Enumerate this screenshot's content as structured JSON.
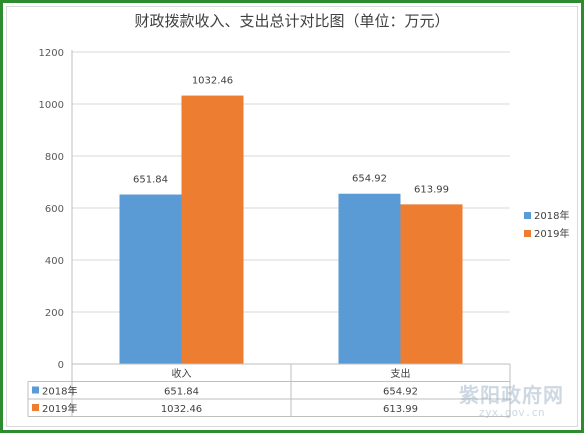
{
  "chart_data": {
    "type": "bar",
    "title": "财政拨款收入、支出总计对比图（单位：万元）",
    "categories": [
      "收入",
      "支出"
    ],
    "series": [
      {
        "name": "2018年",
        "color": "#5b9bd5",
        "values": [
          651.84,
          654.92
        ],
        "labels": [
          "651.84",
          "654.92"
        ]
      },
      {
        "name": "2019年",
        "color": "#ed7d31",
        "values": [
          1032.46,
          613.99
        ],
        "labels": [
          "1032.46",
          "613.99"
        ]
      }
    ],
    "ylim": [
      0,
      1200
    ],
    "yticks": [
      "0",
      "200",
      "400",
      "600",
      "800",
      "1000",
      "1200"
    ],
    "grid": true,
    "legend_position": "right",
    "data_table": true
  },
  "watermark": {
    "main": "紫阳政府网",
    "sub": "zyx.gov.cn"
  }
}
